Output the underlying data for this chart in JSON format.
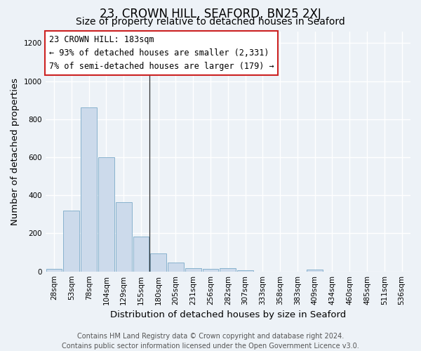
{
  "title": "23, CROWN HILL, SEAFORD, BN25 2XJ",
  "subtitle": "Size of property relative to detached houses in Seaford",
  "xlabel": "Distribution of detached houses by size in Seaford",
  "ylabel": "Number of detached properties",
  "bar_labels": [
    "28sqm",
    "53sqm",
    "78sqm",
    "104sqm",
    "129sqm",
    "155sqm",
    "180sqm",
    "205sqm",
    "231sqm",
    "256sqm",
    "282sqm",
    "307sqm",
    "333sqm",
    "358sqm",
    "383sqm",
    "409sqm",
    "434sqm",
    "460sqm",
    "485sqm",
    "511sqm",
    "536sqm"
  ],
  "bar_values": [
    12,
    320,
    860,
    600,
    365,
    185,
    95,
    47,
    18,
    12,
    18,
    8,
    0,
    0,
    0,
    10,
    0,
    0,
    0,
    0,
    0
  ],
  "bar_color": "#ccdaeb",
  "bar_edge_color": "#7aaac8",
  "ylim": [
    0,
    1260
  ],
  "yticks": [
    0,
    200,
    400,
    600,
    800,
    1000,
    1200
  ],
  "property_line_index": 6,
  "annotation_title": "23 CROWN HILL: 183sqm",
  "annotation_line1": "← 93% of detached houses are smaller (2,331)",
  "annotation_line2": "7% of semi-detached houses are larger (179) →",
  "annotation_box_facecolor": "#ffffff",
  "annotation_box_edgecolor": "#cc2222",
  "footer_line1": "Contains HM Land Registry data © Crown copyright and database right 2024.",
  "footer_line2": "Contains public sector information licensed under the Open Government Licence v3.0.",
  "background_color": "#edf2f7",
  "grid_color": "#ffffff",
  "title_fontsize": 12,
  "subtitle_fontsize": 10,
  "axis_label_fontsize": 9.5,
  "tick_fontsize": 7.5,
  "annotation_fontsize": 8.5,
  "footer_fontsize": 7
}
